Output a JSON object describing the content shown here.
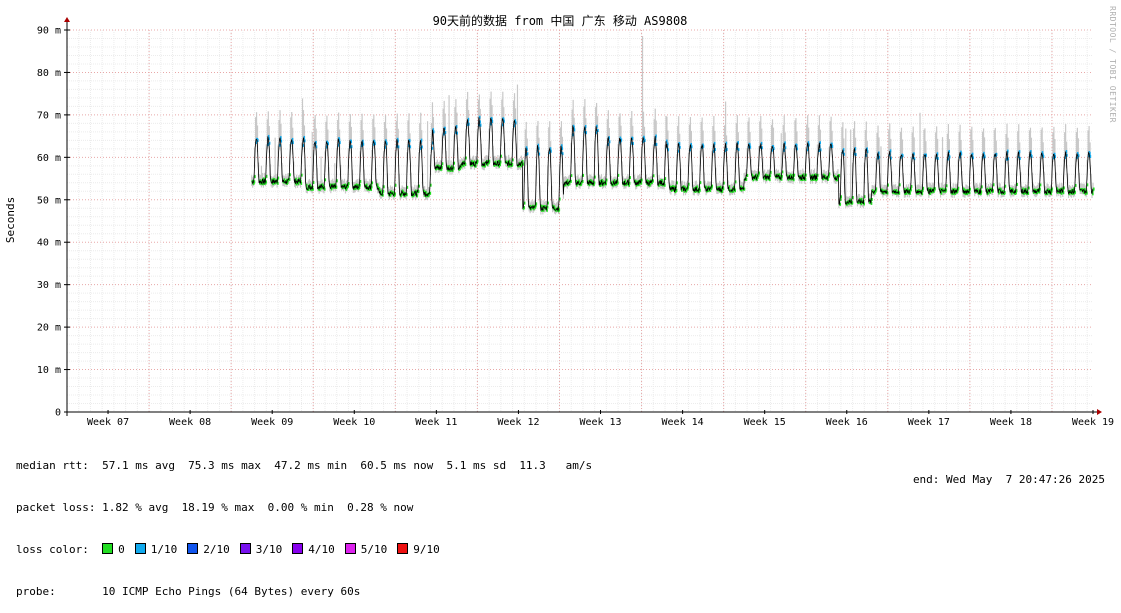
{
  "chart_data": {
    "type": "line",
    "title": "90天前的数据 from 中国 广东 移动 AS9808",
    "xlabel": "",
    "ylabel": "Seconds",
    "ylim": [
      0,
      90
    ],
    "y_ticks": [
      0,
      10,
      20,
      30,
      40,
      50,
      60,
      70,
      80,
      90
    ],
    "y_tick_labels": [
      "0",
      "10 m",
      "20 m",
      "30 m",
      "40 m",
      "50 m",
      "60 m",
      "70 m",
      "80 m",
      "90 m"
    ],
    "x_ticks": [
      "Week 07",
      "Week 08",
      "Week 09",
      "Week 10",
      "Week 11",
      "Week 12",
      "Week 13",
      "Week 14",
      "Week 15",
      "Week 16",
      "Week 17",
      "Week 18",
      "Week 19"
    ],
    "x_range_weeks": [
      6.5,
      19.0
    ],
    "data_start_week": 8.75,
    "grid": true,
    "series": [
      {
        "name": "median rtt",
        "color": "#00cc00",
        "segments": [
          {
            "week_start": 8.75,
            "week_end": 9.4,
            "baseline": 54.3,
            "peak": 64.5
          },
          {
            "week_start": 9.4,
            "week_end": 10.3,
            "baseline": 53.0,
            "peak": 64.0
          },
          {
            "week_start": 10.3,
            "week_end": 10.95,
            "baseline": 51.5,
            "peak": 64.0
          },
          {
            "week_start": 10.95,
            "week_end": 11.3,
            "baseline": 57.5,
            "peak": 67.0
          },
          {
            "week_start": 11.3,
            "week_end": 12.05,
            "baseline": 58.5,
            "peak": 69.0
          },
          {
            "week_start": 12.05,
            "week_end": 12.55,
            "baseline": 48.0,
            "peak": 62.5
          },
          {
            "week_start": 12.55,
            "week_end": 13.0,
            "baseline": 54.0,
            "peak": 67.0
          },
          {
            "week_start": 13.0,
            "week_end": 13.8,
            "baseline": 54.0,
            "peak": 64.5
          },
          {
            "week_start": 13.8,
            "week_end": 14.75,
            "baseline": 52.5,
            "peak": 63.0
          },
          {
            "week_start": 14.75,
            "week_end": 15.9,
            "baseline": 55.3,
            "peak": 63.0
          },
          {
            "week_start": 15.9,
            "week_end": 16.3,
            "baseline": 49.5,
            "peak": 62.0
          },
          {
            "week_start": 16.3,
            "week_end": 19.0,
            "baseline": 52.0,
            "peak": 61.0
          }
        ]
      }
    ],
    "loss_colors": [
      "#22dd22",
      "#11aaee",
      "#1155ee",
      "#7711ee",
      "#8800ee",
      "#dd22ee",
      "#ee1111"
    ]
  },
  "stats": {
    "median_rtt": "median rtt:  57.1 ms avg  75.3 ms max  47.2 ms min  60.5 ms now  5.1 ms sd  11.3   am/s",
    "packet_loss": "packet loss: 1.82 % avg  18.19 % max  0.00 % min  0.28 % now",
    "loss_color_label": "loss color:",
    "loss_color_items": [
      "0",
      "1/10",
      "2/10",
      "3/10",
      "4/10",
      "5/10",
      "9/10"
    ],
    "probe": "probe:       10 ICMP Echo Pings (64 Bytes) every 60s",
    "end": "end: Wed May  7 20:47:26 2025"
  },
  "watermark": "RRDTOOL / TOBI OETIKER"
}
